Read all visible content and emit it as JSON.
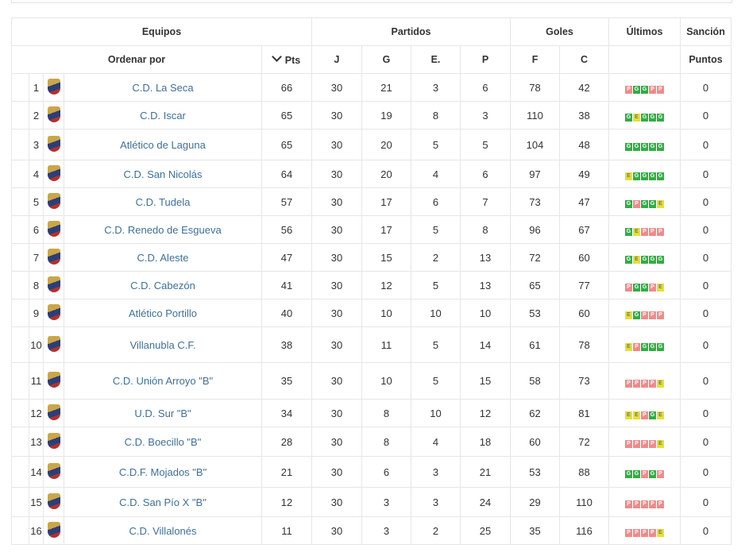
{
  "header": {
    "equipos": "Equipos",
    "partidos": "Partidos",
    "goles": "Goles",
    "ultimos": "Últimos",
    "sancion": "Sanción",
    "ordenar_por": "Ordenar por",
    "pts": "Pts",
    "j": "J",
    "g": "G",
    "e": "E.",
    "p": "P",
    "f": "F",
    "c": "C",
    "puntos": "Puntos"
  },
  "colors": {
    "link": "#3f6f99",
    "loss": "#f08a8a",
    "win": "#2fae42",
    "draw": "#e6e030"
  },
  "teams": [
    {
      "pos": "1",
      "name": "C.D. La Seca",
      "pts": "66",
      "j": "30",
      "g": "21",
      "e": "3",
      "p": "6",
      "f": "78",
      "c": "42",
      "last": [
        "P",
        "G",
        "G",
        "P",
        "P"
      ],
      "sancion": "0",
      "logo": "crest-icon"
    },
    {
      "pos": "2",
      "name": "C.D. Iscar",
      "pts": "65",
      "j": "30",
      "g": "19",
      "e": "8",
      "p": "3",
      "f": "110",
      "c": "38",
      "last": [
        "G",
        "E",
        "G",
        "G",
        "G"
      ],
      "sancion": "0",
      "logo": "crest-icon"
    },
    {
      "pos": "3",
      "name": "Atlético de Laguna",
      "pts": "65",
      "j": "30",
      "g": "20",
      "e": "5",
      "p": "5",
      "f": "104",
      "c": "48",
      "last": [
        "G",
        "G",
        "G",
        "G",
        "G"
      ],
      "sancion": "0",
      "logo": "crest-icon"
    },
    {
      "pos": "4",
      "name": "C.D. San Nicolás",
      "pts": "64",
      "j": "30",
      "g": "20",
      "e": "4",
      "p": "6",
      "f": "97",
      "c": "49",
      "last": [
        "E",
        "G",
        "G",
        "G",
        "G"
      ],
      "sancion": "0",
      "logo": "crest-icon"
    },
    {
      "pos": "5",
      "name": "C.D. Tudela",
      "pts": "57",
      "j": "30",
      "g": "17",
      "e": "6",
      "p": "7",
      "f": "73",
      "c": "47",
      "last": [
        "G",
        "P",
        "G",
        "G",
        "E"
      ],
      "sancion": "0",
      "logo": "crest-icon"
    },
    {
      "pos": "6",
      "name": "C.D. Renedo de Esgueva",
      "pts": "56",
      "j": "30",
      "g": "17",
      "e": "5",
      "p": "8",
      "f": "96",
      "c": "67",
      "last": [
        "G",
        "E",
        "P",
        "P",
        "P"
      ],
      "sancion": "0",
      "logo": "crest-icon"
    },
    {
      "pos": "7",
      "name": "C.D. Aleste",
      "pts": "47",
      "j": "30",
      "g": "15",
      "e": "2",
      "p": "13",
      "f": "72",
      "c": "60",
      "last": [
        "G",
        "E",
        "G",
        "G",
        "G"
      ],
      "sancion": "0",
      "logo": "crest-icon"
    },
    {
      "pos": "8",
      "name": "C.D. Cabezón",
      "pts": "41",
      "j": "30",
      "g": "12",
      "e": "5",
      "p": "13",
      "f": "65",
      "c": "77",
      "last": [
        "P",
        "G",
        "G",
        "P",
        "E"
      ],
      "sancion": "0",
      "logo": "crest-icon"
    },
    {
      "pos": "9",
      "name": "Atlético Portillo",
      "pts": "40",
      "j": "30",
      "g": "10",
      "e": "10",
      "p": "10",
      "f": "53",
      "c": "60",
      "last": [
        "E",
        "G",
        "P",
        "P",
        "P"
      ],
      "sancion": "0",
      "logo": "crest-icon"
    },
    {
      "pos": "10",
      "name": "Villanubla C.F.",
      "pts": "38",
      "j": "30",
      "g": "11",
      "e": "5",
      "p": "14",
      "f": "61",
      "c": "78",
      "last": [
        "E",
        "P",
        "G",
        "G",
        "G"
      ],
      "sancion": "0",
      "logo": "crest-icon"
    },
    {
      "pos": "11",
      "name": "C.D. Unión Arroyo \"B\"",
      "pts": "35",
      "j": "30",
      "g": "10",
      "e": "5",
      "p": "15",
      "f": "58",
      "c": "73",
      "last": [
        "P",
        "P",
        "P",
        "P",
        "E"
      ],
      "sancion": "0",
      "logo": "crest-icon"
    },
    {
      "pos": "12",
      "name": "U.D. Sur \"B\"",
      "pts": "34",
      "j": "30",
      "g": "8",
      "e": "10",
      "p": "12",
      "f": "62",
      "c": "81",
      "last": [
        "E",
        "E",
        "P",
        "G",
        "E"
      ],
      "sancion": "0",
      "logo": "crest-icon"
    },
    {
      "pos": "13",
      "name": "C.D. Boecillo \"B\"",
      "pts": "28",
      "j": "30",
      "g": "8",
      "e": "4",
      "p": "18",
      "f": "60",
      "c": "72",
      "last": [
        "P",
        "P",
        "P",
        "P",
        "E"
      ],
      "sancion": "0",
      "logo": "crest-icon"
    },
    {
      "pos": "14",
      "name": "C.D.F. Mojados \"B\"",
      "pts": "21",
      "j": "30",
      "g": "6",
      "e": "3",
      "p": "21",
      "f": "53",
      "c": "88",
      "last": [
        "G",
        "G",
        "P",
        "G",
        "P"
      ],
      "sancion": "0",
      "logo": "crest-icon"
    },
    {
      "pos": "15",
      "name": "C.D. San Pío X \"B\"",
      "pts": "12",
      "j": "30",
      "g": "3",
      "e": "3",
      "p": "24",
      "f": "29",
      "c": "110",
      "last": [
        "P",
        "P",
        "P",
        "P",
        "P"
      ],
      "sancion": "0",
      "logo": "crest-icon"
    },
    {
      "pos": "16",
      "name": "C.D. Villalonés",
      "pts": "11",
      "j": "30",
      "g": "3",
      "e": "2",
      "p": "25",
      "f": "35",
      "c": "116",
      "last": [
        "P",
        "P",
        "P",
        "P",
        "E"
      ],
      "sancion": "0",
      "logo": "crest-icon"
    }
  ]
}
